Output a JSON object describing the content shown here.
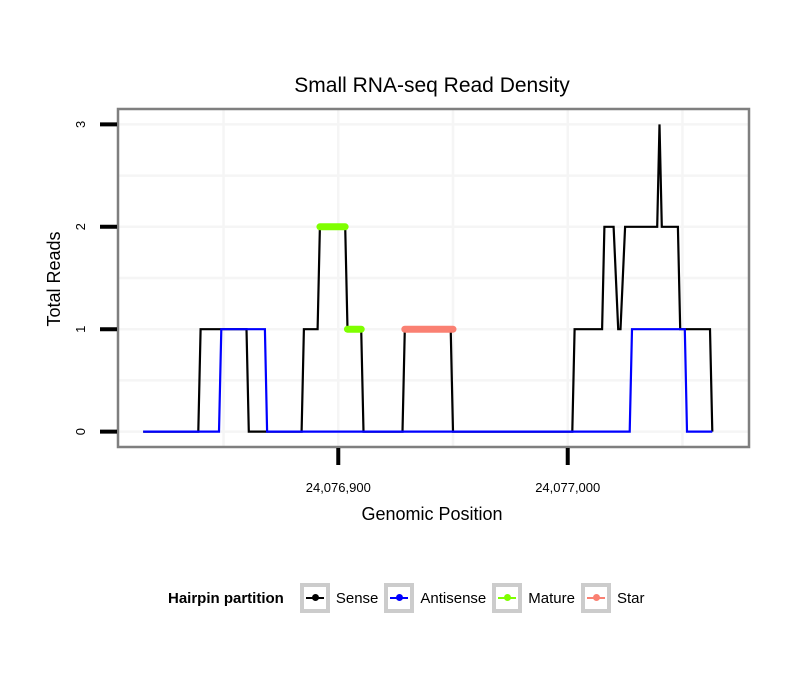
{
  "chart_data": {
    "type": "line",
    "title": "Small RNA-seq Read Density",
    "xlabel": "Genomic Position",
    "ylabel": "Total Reads",
    "xlim": [
      24076804,
      24077079
    ],
    "ylim": [
      -0.15,
      3.15
    ],
    "xticks": [
      24076900,
      24077000
    ],
    "xtick_labels": [
      "24,076,900",
      "24,077,000"
    ],
    "yticks": [
      0,
      1,
      2,
      3
    ],
    "ytick_labels": [
      "0",
      "1",
      "2",
      "3"
    ],
    "grid": true,
    "legend": {
      "title": "Hairpin partition",
      "position": "bottom",
      "entries": [
        {
          "label": "Sense",
          "color": "#000000"
        },
        {
          "label": "Antisense",
          "color": "#0000ff"
        },
        {
          "label": "Mature",
          "color": "#7fff00"
        },
        {
          "label": "Star",
          "color": "#fa8072"
        }
      ]
    },
    "series": [
      {
        "name": "Sense",
        "color": "#000000",
        "points": [
          [
            24076815,
            0
          ],
          [
            24076839,
            0
          ],
          [
            24076840,
            1
          ],
          [
            24076860,
            1
          ],
          [
            24076861,
            0
          ],
          [
            24076884,
            0
          ],
          [
            24076885,
            1
          ],
          [
            24076891,
            1
          ],
          [
            24076892,
            2
          ],
          [
            24076903,
            2
          ],
          [
            24076904,
            1
          ],
          [
            24076910,
            1
          ],
          [
            24076911,
            0
          ],
          [
            24076928,
            0
          ],
          [
            24076929,
            1
          ],
          [
            24076949,
            1
          ],
          [
            24076950,
            0
          ],
          [
            24077002,
            0
          ],
          [
            24077003,
            1
          ],
          [
            24077015,
            1
          ],
          [
            24077016,
            2
          ],
          [
            24077020,
            2
          ],
          [
            24077022,
            1
          ],
          [
            24077023,
            1
          ],
          [
            24077025,
            2
          ],
          [
            24077039,
            2
          ],
          [
            24077040,
            3
          ],
          [
            24077041,
            2
          ],
          [
            24077048,
            2
          ],
          [
            24077049,
            1
          ],
          [
            24077062,
            1
          ],
          [
            24077063,
            0
          ]
        ]
      },
      {
        "name": "Antisense",
        "color": "#0000ff",
        "points": [
          [
            24076815,
            0
          ],
          [
            24076848,
            0
          ],
          [
            24076849,
            1
          ],
          [
            24076868,
            1
          ],
          [
            24076869,
            0
          ],
          [
            24077027,
            0
          ],
          [
            24077028,
            1
          ],
          [
            24077051,
            1
          ],
          [
            24077052,
            0
          ],
          [
            24077063,
            0
          ]
        ]
      },
      {
        "name": "Mature",
        "color": "#7fff00",
        "segments": [
          {
            "x": [
              24076892,
              24076903
            ],
            "y": 2
          },
          {
            "x": [
              24076904,
              24076910
            ],
            "y": 1
          }
        ]
      },
      {
        "name": "Star",
        "color": "#fa8072",
        "segments": [
          {
            "x": [
              24076929,
              24076950
            ],
            "y": 1
          }
        ]
      }
    ]
  }
}
